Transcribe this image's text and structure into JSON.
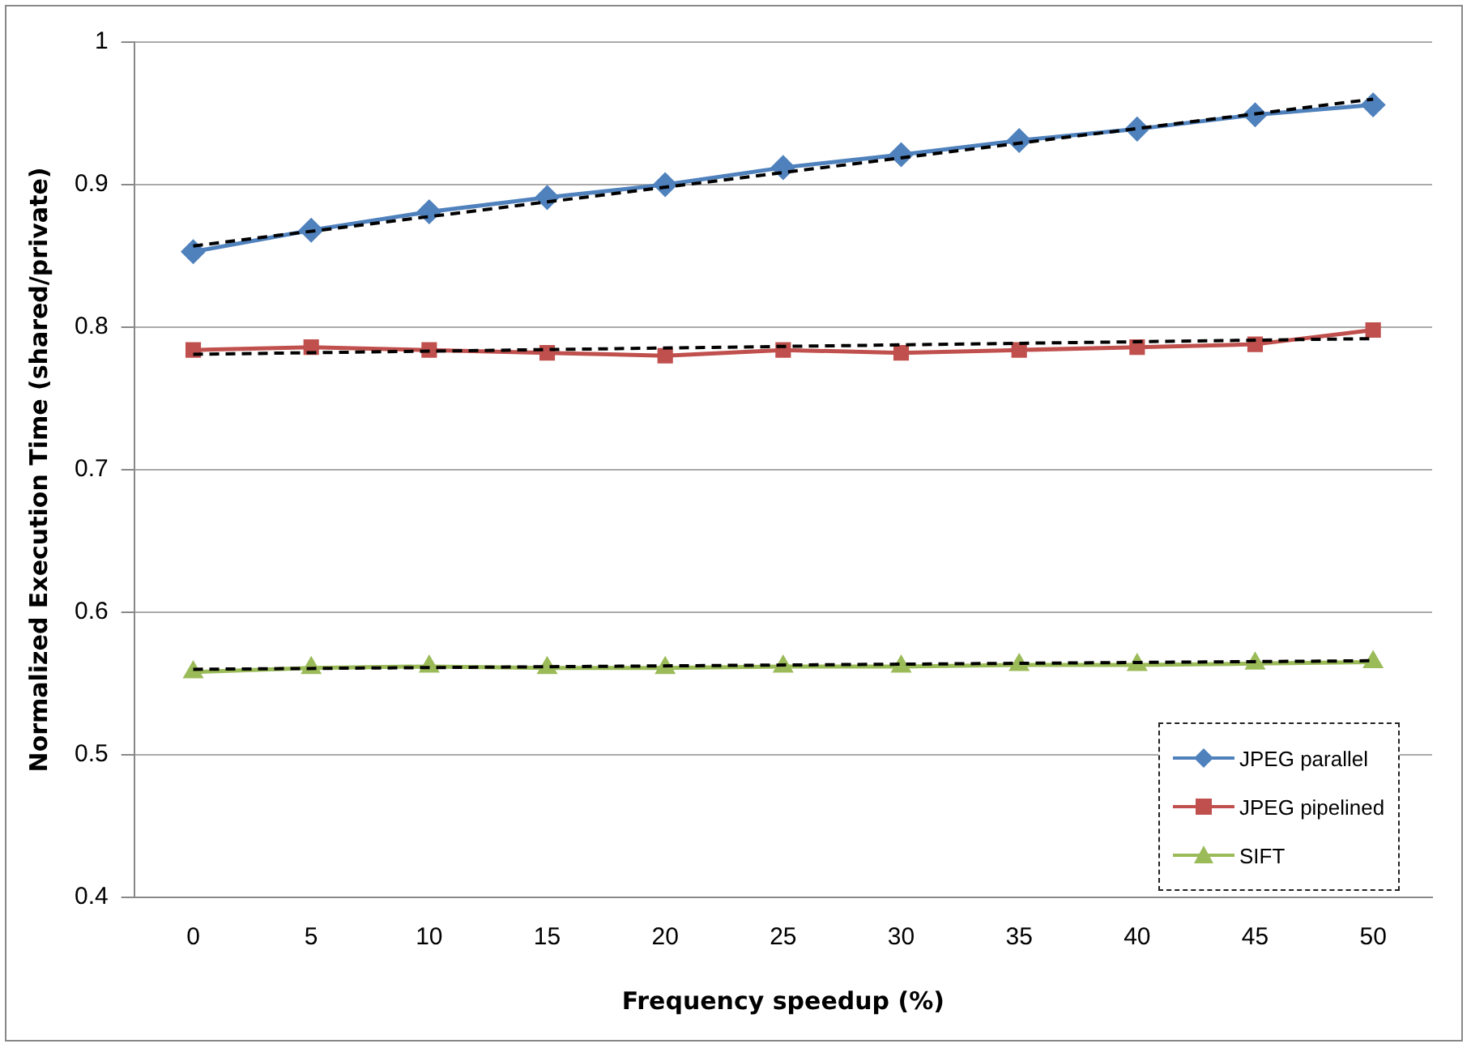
{
  "chart_data": {
    "type": "line",
    "xlabel": "Frequency speedup (%)",
    "ylabel": "Normalized Execution Time (shared/private)",
    "categories": [
      "0",
      "5",
      "10",
      "15",
      "20",
      "25",
      "30",
      "35",
      "40",
      "45",
      "50"
    ],
    "series": [
      {
        "name": "JPEG parallel",
        "color": "#4f81bd",
        "marker": "diamond",
        "values": [
          0.853,
          0.868,
          0.881,
          0.891,
          0.9,
          0.912,
          0.921,
          0.931,
          0.939,
          0.949,
          0.956
        ]
      },
      {
        "name": "JPEG pipelined",
        "color": "#c0504d",
        "marker": "square",
        "values": [
          0.784,
          0.786,
          0.784,
          0.782,
          0.78,
          0.784,
          0.782,
          0.784,
          0.786,
          0.788,
          0.798
        ]
      },
      {
        "name": "SIFT",
        "color": "#9bbb59",
        "marker": "triangle",
        "values": [
          0.558,
          0.561,
          0.562,
          0.561,
          0.561,
          0.562,
          0.562,
          0.563,
          0.563,
          0.564,
          0.565
        ]
      },
      {
        "type": "line",
        "color": "#000000",
        "marker": "none",
        "line_style": "dashed",
        "x": [
          "0",
          "50"
        ],
        "values": [
          0.857,
          0.96
        ]
      },
      {
        "type": "line",
        "color": "#000000",
        "marker": "none",
        "line_style": "dashed",
        "x": [
          "0",
          "50"
        ],
        "values": [
          0.781,
          0.792
        ]
      },
      {
        "type": "line",
        "color": "#000000",
        "marker": "none",
        "line_style": "dashed",
        "x": [
          "0",
          "50"
        ],
        "values": [
          0.56,
          0.566
        ]
      }
    ],
    "ylim": [
      0.4,
      1
    ],
    "yticks": [
      0.4,
      0.5,
      0.6,
      0.7,
      0.8,
      0.9,
      1
    ],
    "grid": "y",
    "legend": "bottom right"
  }
}
